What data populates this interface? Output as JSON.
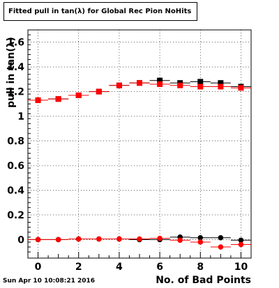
{
  "title": "Fitted pull in tan(λ) for Global Rec Pion NoHits",
  "footer": "Sun Apr 10 10:08:21 2016",
  "colors": {
    "series_black": "#000000",
    "series_red": "#ff0000",
    "grid": "#000000"
  },
  "chart_data": {
    "type": "scatter",
    "title": "Fitted pull in tan(λ) for Global Rec Pion NoHits",
    "xlabel": "No. of Bad Points",
    "ylabel": "pull in tan(λ)",
    "xlim": [
      -0.5,
      10.5
    ],
    "ylim": [
      -0.15,
      1.7
    ],
    "x_ticks": [
      0,
      2,
      4,
      6,
      8,
      10
    ],
    "y_ticks": [
      0,
      0.2,
      0.4,
      0.6,
      0.8,
      1,
      1.2,
      1.4,
      1.6
    ],
    "x_tick_labels": [
      "0",
      "2",
      "4",
      "6",
      "8",
      "10"
    ],
    "y_tick_labels": [
      "0",
      "0.2",
      "0.4",
      "0.6",
      "0.8",
      "1",
      "1.2",
      "1.4",
      "1.6"
    ],
    "grid": true,
    "x": [
      0,
      1,
      2,
      3,
      4,
      5,
      6,
      7,
      8,
      9,
      10
    ],
    "series": [
      {
        "marker": "square",
        "color": "#000000",
        "values": [
          1.13,
          1.14,
          1.17,
          1.2,
          1.25,
          1.27,
          1.29,
          1.27,
          1.28,
          1.27,
          1.24
        ]
      },
      {
        "marker": "square",
        "color": "#ff0000",
        "values": [
          1.13,
          1.14,
          1.17,
          1.2,
          1.25,
          1.27,
          1.26,
          1.25,
          1.24,
          1.24,
          1.23
        ]
      },
      {
        "marker": "circle",
        "color": "#000000",
        "values": [
          0.0,
          0.0,
          0.005,
          0.005,
          0.005,
          0.0,
          0.0,
          0.02,
          0.015,
          0.015,
          -0.005
        ]
      },
      {
        "marker": "circle",
        "color": "#ff0000",
        "values": [
          0.0,
          0.0,
          0.005,
          0.005,
          0.005,
          0.005,
          0.01,
          -0.005,
          -0.02,
          -0.06,
          -0.04
        ]
      }
    ]
  }
}
